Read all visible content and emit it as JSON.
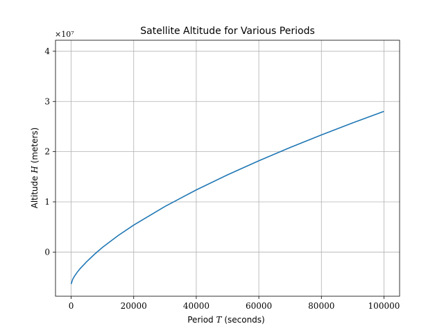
{
  "chart_data": {
    "type": "line",
    "title": "Satellite Altitude for Various Periods",
    "xlabel": {
      "prefix": "Period ",
      "symbol": "T",
      "suffix": " (seconds)"
    },
    "ylabel": {
      "prefix": "Altitude ",
      "symbol": "H",
      "suffix": " (meters)"
    },
    "y_offset_label": "×10⁷",
    "xlim": [
      -5000,
      105000
    ],
    "ylim": [
      -0.88,
      4.22
    ],
    "xticks": [
      0,
      20000,
      40000,
      60000,
      80000,
      100000
    ],
    "xtick_labels": [
      "0",
      "20000",
      "40000",
      "60000",
      "80000",
      "100000"
    ],
    "yticks": [
      0,
      1,
      2,
      3,
      4
    ],
    "ytick_labels": [
      "0",
      "1",
      "2",
      "3",
      "4"
    ],
    "grid": true,
    "line_color": "#1f77b4",
    "series": [
      {
        "x": [
          0,
          500,
          1000,
          2000,
          3000,
          5000,
          7500,
          10000,
          15000,
          20000,
          30000,
          40000,
          50000,
          60000,
          70000,
          80000,
          90000,
          100000
        ],
        "y": [
          -0.637,
          -0.542,
          -0.486,
          -0.397,
          -0.321,
          -0.19,
          -0.042,
          0.092,
          0.328,
          0.538,
          0.909,
          1.238,
          1.539,
          1.819,
          2.083,
          2.334,
          2.573,
          2.804
        ],
        "y_in_units_of_1e7": [
          -0.637,
          -0.542,
          -0.486,
          -0.397,
          -0.321,
          -0.19,
          -0.042,
          0.092,
          0.328,
          0.538,
          0.909,
          1.238,
          1.539,
          1.819,
          2.083,
          2.334,
          2.573,
          2.804
        ]
      }
    ]
  }
}
